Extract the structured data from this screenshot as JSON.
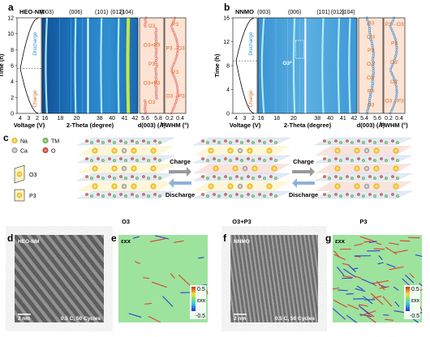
{
  "panels": {
    "a": {
      "letter": "a",
      "sample": "HEO-NM",
      "ylabel": "Time (h)",
      "yticks": [
        "0",
        "2",
        "4",
        "6",
        "8",
        "10",
        "12"
      ],
      "voltage_xlabel": "Voltage (V)",
      "voltage_ticks": [
        "4",
        "3",
        "2"
      ],
      "xrd_xlabel": "2-Theta (degree)",
      "xrd_ticks": [
        "16",
        "18",
        "20",
        "38",
        "40",
        "41",
        "42"
      ],
      "peaks": [
        "(003)",
        "(006)",
        "(101)",
        "(012)",
        "(104)"
      ],
      "charge": "Charge",
      "discharge": "Discharge",
      "d_label": "d(003) (Å)",
      "d_ticks": [
        "5.6",
        "5.8"
      ],
      "fwhm_label": "FWHM (°)",
      "fwhm_ticks": [
        "0.2",
        "0.4"
      ],
      "phases_d": [
        "O3",
        "O3+P3",
        "P3",
        "O3+P3",
        "O3"
      ],
      "phases_f": [
        "P3",
        "P3→O3",
        "P3",
        "O3→P3"
      ]
    },
    "b": {
      "letter": "b",
      "sample": "NNMO",
      "ylabel": "Time (h)",
      "yticks": [
        "0",
        "4",
        "8",
        "12",
        "16"
      ],
      "voltage_xlabel": "Voltage (V)",
      "voltage_ticks": [
        "4",
        "3",
        "2"
      ],
      "xrd_xlabel": "2-Theta (degree)",
      "xrd_ticks": [
        "16",
        "18",
        "20",
        "38",
        "40",
        "41",
        "42"
      ],
      "peaks": [
        "(003)",
        "(006)",
        "(101)",
        "(012)",
        "(104)"
      ],
      "charge": "Charge",
      "discharge": "Discharge",
      "o3_star": "O3*",
      "d_label": "d(003) (Å)",
      "d_ticks": [
        "5.4",
        "5.6"
      ],
      "fwhm_label": "FWHM (°)",
      "fwhm_ticks": [
        "0.2",
        "0.4"
      ],
      "phases_d": [
        "O3",
        "P3",
        "O3'",
        "O3'",
        "P3",
        "O'3",
        "O3"
      ],
      "phases_f": [
        "P3→O3",
        "P3",
        "O3'",
        "O3'",
        "O3→P3"
      ]
    },
    "c": {
      "letter": "c",
      "legend": [
        {
          "label": "Na",
          "color": "#f2c31b"
        },
        {
          "label": "TM",
          "color": "#7dbf6a"
        },
        {
          "label": "Ca",
          "color": "#b9b9b9"
        },
        {
          "label": "O",
          "color": "#d0463a"
        }
      ],
      "stack_labels": [
        "O3",
        "P3"
      ],
      "structures": [
        "O3",
        "O3+P3",
        "P3"
      ],
      "charge": "Charge",
      "discharge": "Discharge"
    },
    "d": {
      "letter": "d",
      "sample": "HEO-NM",
      "scale": "2 nm",
      "condition": "0.5 C, 50 Cycles"
    },
    "e": {
      "letter": "e",
      "title": "εxx",
      "cbar_label": "εxx",
      "cbar_ticks": [
        "0.5",
        "-0.5"
      ]
    },
    "f": {
      "letter": "f",
      "sample": "NNMO",
      "scale": "2 nm",
      "condition": "0.5 C, 50 Cycles"
    },
    "g": {
      "letter": "g",
      "title": "εxx",
      "cbar_label": "εxx",
      "cbar_ticks": [
        "0.5",
        "-0.5"
      ]
    }
  },
  "colors": {
    "charge": "#d86a1e",
    "discharge": "#2a8fc8",
    "xrd_bg": "#1f6fb0",
    "peak": "#bff2f7",
    "d_marker": "#e06a6a",
    "nnmo_marker": "#3e8ed0",
    "phase_bg": "#fde3d4"
  }
}
